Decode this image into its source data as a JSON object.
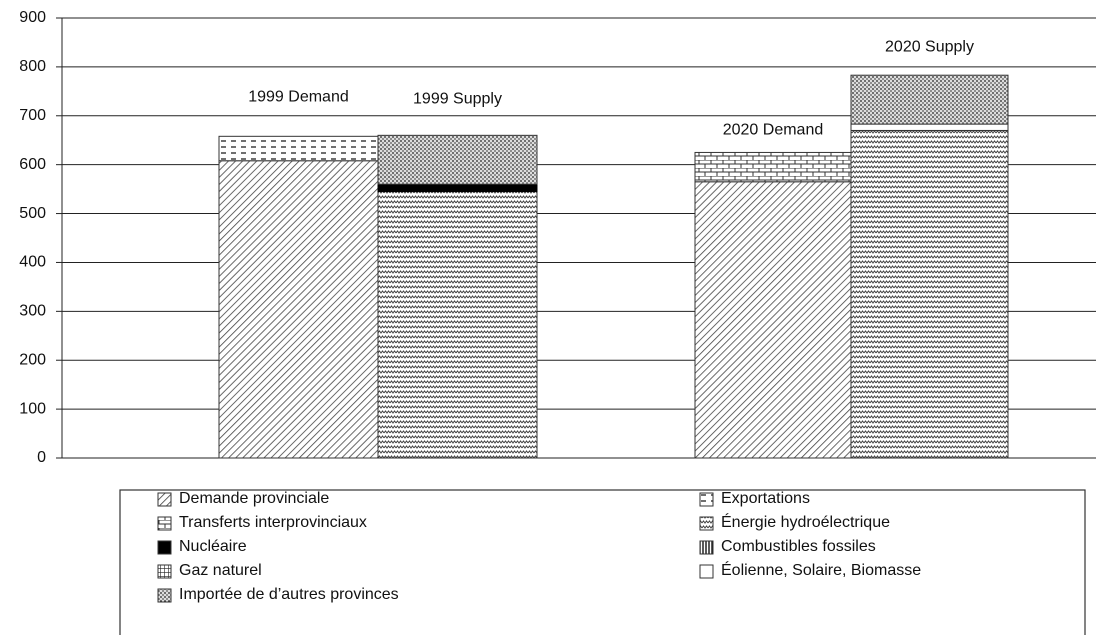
{
  "chart_data": {
    "type": "stacked_bar",
    "categories": [
      "1999 Demand",
      "1999 Supply",
      "2020 Demand",
      "2020 Supply"
    ],
    "series": [
      {
        "name": "Demande provinciale",
        "color": "#333",
        "pattern": "diagonal",
        "values": [
          608,
          null,
          565,
          null
        ]
      },
      {
        "name": "Exportations",
        "color": "#333",
        "pattern": "dash",
        "values": [
          50,
          null,
          null,
          null
        ]
      },
      {
        "name": "Transferts interprovinciaux",
        "color": "#333",
        "pattern": "brick",
        "values": [
          null,
          null,
          60,
          null
        ]
      },
      {
        "name": "Énergie hydroélectrique",
        "color": "#333",
        "pattern": "wave",
        "values": [
          null,
          545,
          null,
          670
        ]
      },
      {
        "name": "Nucléaire",
        "color": "#000",
        "pattern": "solid",
        "values": [
          null,
          15,
          null,
          null
        ]
      },
      {
        "name": "Combustibles fossiles",
        "color": "#333",
        "pattern": "vlines",
        "values": [
          null,
          null,
          null,
          null
        ]
      },
      {
        "name": "Gaz naturel",
        "color": "#333",
        "pattern": "grid",
        "values": [
          null,
          null,
          null,
          null
        ]
      },
      {
        "name": "Éolienne, Solaire, Biomasse",
        "color": "#333",
        "pattern": "none",
        "values": [
          null,
          null,
          null,
          13
        ]
      },
      {
        "name": "Importée de d’autres provinces",
        "color": "#333",
        "pattern": "dots",
        "values": [
          null,
          100,
          null,
          100
        ]
      }
    ],
    "ylim": [
      0,
      900
    ],
    "yticks": [
      0,
      100,
      200,
      300,
      400,
      500,
      600,
      700,
      800,
      900
    ],
    "grid": true
  }
}
